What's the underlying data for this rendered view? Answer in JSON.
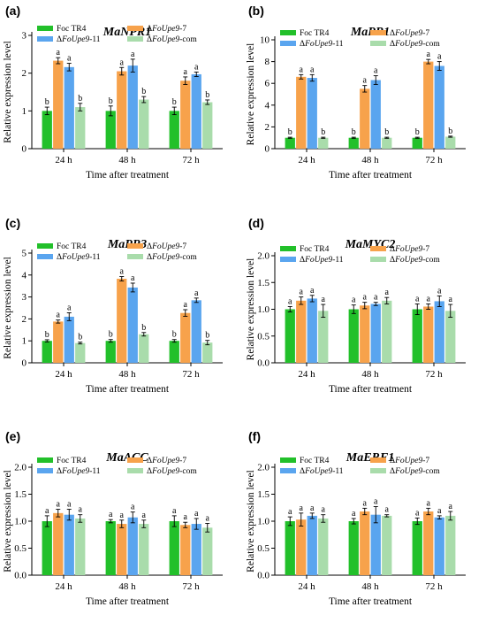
{
  "chart_data": [
    {
      "type": "bar",
      "letter": "(a)",
      "title": "MaNPR1",
      "ylabel": "Relative expression level",
      "xlabel": "Time after treatment",
      "categories": [
        "24 h",
        "48 h",
        "72 h"
      ],
      "ylim": [
        0,
        3
      ],
      "yticks": [
        "0",
        "1",
        "2",
        "3"
      ],
      "series": [
        {
          "name": "Foc TR4",
          "color": "#22c02a",
          "values": [
            1.0,
            1.0,
            1.0
          ],
          "errors": [
            0.1,
            0.13,
            0.1
          ],
          "labels": [
            "b",
            "b",
            "b"
          ]
        },
        {
          "name": "ΔFoUpe9-7",
          "color": "#f7a24b",
          "values": [
            2.33,
            2.05,
            1.8
          ],
          "errors": [
            0.08,
            0.1,
            0.1
          ],
          "labels": [
            "a",
            "a",
            "a"
          ]
        },
        {
          "name": "ΔFoUpe9-11",
          "color": "#5aa5ef",
          "values": [
            2.16,
            2.2,
            1.97
          ],
          "errors": [
            0.1,
            0.17,
            0.06
          ],
          "labels": [
            "a",
            "a",
            "a"
          ]
        },
        {
          "name": "ΔFoUpe9-com",
          "color": "#a9dcab",
          "values": [
            1.1,
            1.3,
            1.23
          ],
          "errors": [
            0.1,
            0.08,
            0.06
          ],
          "labels": [
            "b",
            "b",
            "b"
          ]
        }
      ]
    },
    {
      "type": "bar",
      "letter": "(b)",
      "title": "MaPR1",
      "ylabel": "Relative expression level",
      "xlabel": "Time after treatment",
      "categories": [
        "24 h",
        "48 h",
        "72 h"
      ],
      "ylim": [
        0,
        10
      ],
      "yticks": [
        "0",
        "2",
        "4",
        "6",
        "8",
        "10"
      ],
      "series": [
        {
          "name": "Foc TR4",
          "color": "#22c02a",
          "values": [
            1.0,
            1.0,
            1.0
          ],
          "errors": [
            0.05,
            0.05,
            0.05
          ],
          "labels": [
            "b",
            "b",
            "b"
          ]
        },
        {
          "name": "ΔFoUpe9-7",
          "color": "#f7a24b",
          "values": [
            6.6,
            5.5,
            8.0
          ],
          "errors": [
            0.2,
            0.3,
            0.2
          ],
          "labels": [
            "a",
            "a",
            "a"
          ]
        },
        {
          "name": "ΔFoUpe9-11",
          "color": "#5aa5ef",
          "values": [
            6.5,
            6.3,
            7.6
          ],
          "errors": [
            0.3,
            0.4,
            0.4
          ],
          "labels": [
            "a",
            "a",
            "a"
          ]
        },
        {
          "name": "ΔFoUpe9-com",
          "color": "#a9dcab",
          "values": [
            1.0,
            1.0,
            1.1
          ],
          "errors": [
            0.05,
            0.05,
            0.05
          ],
          "labels": [
            "b",
            "b",
            "b"
          ]
        }
      ]
    },
    {
      "type": "bar",
      "letter": "(c)",
      "title": "MaPR3",
      "ylabel": "Relative expression level",
      "xlabel": "Time after treatment",
      "categories": [
        "24 h",
        "48 h",
        "72 h"
      ],
      "ylim": [
        0,
        5
      ],
      "yticks": [
        "0",
        "1",
        "2",
        "3",
        "4",
        "5"
      ],
      "series": [
        {
          "name": "Foc TR4",
          "color": "#22c02a",
          "values": [
            1.0,
            1.0,
            1.0
          ],
          "errors": [
            0.05,
            0.06,
            0.06
          ],
          "labels": [
            "b",
            "b",
            "b"
          ]
        },
        {
          "name": "ΔFoUpe9-7",
          "color": "#f7a24b",
          "values": [
            1.88,
            3.83,
            2.27
          ],
          "errors": [
            0.07,
            0.1,
            0.15
          ],
          "labels": [
            "a",
            "a",
            "a"
          ]
        },
        {
          "name": "ΔFoUpe9-11",
          "color": "#5aa5ef",
          "values": [
            2.1,
            3.43,
            2.85
          ],
          "errors": [
            0.18,
            0.2,
            0.1
          ],
          "labels": [
            "a",
            "a",
            "a"
          ]
        },
        {
          "name": "ΔFoUpe9-com",
          "color": "#a9dcab",
          "values": [
            0.9,
            1.3,
            0.92
          ],
          "errors": [
            0.04,
            0.08,
            0.1
          ],
          "labels": [
            "b",
            "b",
            "b"
          ]
        }
      ]
    },
    {
      "type": "bar",
      "letter": "(d)",
      "title": "MaMYC2",
      "ylabel": "Relative expression level",
      "xlabel": "Time after treatment",
      "categories": [
        "24 h",
        "48 h",
        "72 h"
      ],
      "ylim": [
        0,
        2
      ],
      "yticks": [
        "0.0",
        "0.5",
        "1.0",
        "1.5",
        "2.0"
      ],
      "series": [
        {
          "name": "Foc TR4",
          "color": "#22c02a",
          "values": [
            1.0,
            1.0,
            1.0
          ],
          "errors": [
            0.05,
            0.08,
            0.1
          ],
          "labels": [
            "a",
            "a",
            "a"
          ]
        },
        {
          "name": "ΔFoUpe9-7",
          "color": "#f7a24b",
          "values": [
            1.16,
            1.07,
            1.05
          ],
          "errors": [
            0.07,
            0.06,
            0.05
          ],
          "labels": [
            "a",
            "a",
            "a"
          ]
        },
        {
          "name": "ΔFoUpe9-11",
          "color": "#5aa5ef",
          "values": [
            1.2,
            1.1,
            1.15
          ],
          "errors": [
            0.06,
            0.03,
            0.1
          ],
          "labels": [
            "a",
            "a",
            "a"
          ]
        },
        {
          "name": "ΔFoUpe9-com",
          "color": "#a9dcab",
          "values": [
            0.97,
            1.16,
            0.97
          ],
          "errors": [
            0.12,
            0.06,
            0.12
          ],
          "labels": [
            "a",
            "a",
            "a"
          ]
        }
      ]
    },
    {
      "type": "bar",
      "letter": "(e)",
      "title": "MaACC",
      "ylabel": "Relative expression level",
      "xlabel": "Time after treatment",
      "categories": [
        "24 h",
        "48 h",
        "72 h"
      ],
      "ylim": [
        0,
        2
      ],
      "yticks": [
        "0.0",
        "0.5",
        "1.0",
        "1.5",
        "2.0"
      ],
      "series": [
        {
          "name": "Foc TR4",
          "color": "#22c02a",
          "values": [
            1.0,
            1.0,
            1.0
          ],
          "errors": [
            0.1,
            0.03,
            0.1
          ],
          "labels": [
            "a",
            "a",
            "a"
          ]
        },
        {
          "name": "ΔFoUpe9-7",
          "color": "#f7a24b",
          "values": [
            1.15,
            0.95,
            0.93
          ],
          "errors": [
            0.07,
            0.07,
            0.05
          ],
          "labels": [
            "a",
            "a",
            "a"
          ]
        },
        {
          "name": "ΔFoUpe9-11",
          "color": "#5aa5ef",
          "values": [
            1.12,
            1.07,
            0.95
          ],
          "errors": [
            0.1,
            0.1,
            0.1
          ],
          "labels": [
            "a",
            "a",
            "a"
          ]
        },
        {
          "name": "ΔFoUpe9-com",
          "color": "#a9dcab",
          "values": [
            1.05,
            0.95,
            0.88
          ],
          "errors": [
            0.07,
            0.07,
            0.08
          ],
          "labels": [
            "a",
            "a",
            "a"
          ]
        }
      ]
    },
    {
      "type": "bar",
      "letter": "(f)",
      "title": "MaERF1",
      "ylabel": "Relative expression level",
      "xlabel": "Time after treatment",
      "categories": [
        "24 h",
        "48 h",
        "72 h"
      ],
      "ylim": [
        0,
        2
      ],
      "yticks": [
        "0.0",
        "0.5",
        "1.0",
        "1.5",
        "2.0"
      ],
      "series": [
        {
          "name": "Foc TR4",
          "color": "#22c02a",
          "values": [
            1.0,
            1.0,
            1.0
          ],
          "errors": [
            0.08,
            0.05,
            0.06
          ],
          "labels": [
            "a",
            "a",
            "a"
          ]
        },
        {
          "name": "ΔFoUpe9-7",
          "color": "#f7a24b",
          "values": [
            1.03,
            1.18,
            1.18
          ],
          "errors": [
            0.12,
            0.06,
            0.06
          ],
          "labels": [
            "a",
            "a",
            "a"
          ]
        },
        {
          "name": "ΔFoUpe9-11",
          "color": "#5aa5ef",
          "values": [
            1.1,
            1.12,
            1.07
          ],
          "errors": [
            0.05,
            0.15,
            0.03
          ],
          "labels": [
            "a",
            "a",
            "a"
          ]
        },
        {
          "name": "ΔFoUpe9-com",
          "color": "#a9dcab",
          "values": [
            1.05,
            1.1,
            1.1
          ],
          "errors": [
            0.07,
            0.02,
            0.08
          ],
          "labels": [
            "a",
            "a",
            "a"
          ]
        }
      ]
    }
  ]
}
